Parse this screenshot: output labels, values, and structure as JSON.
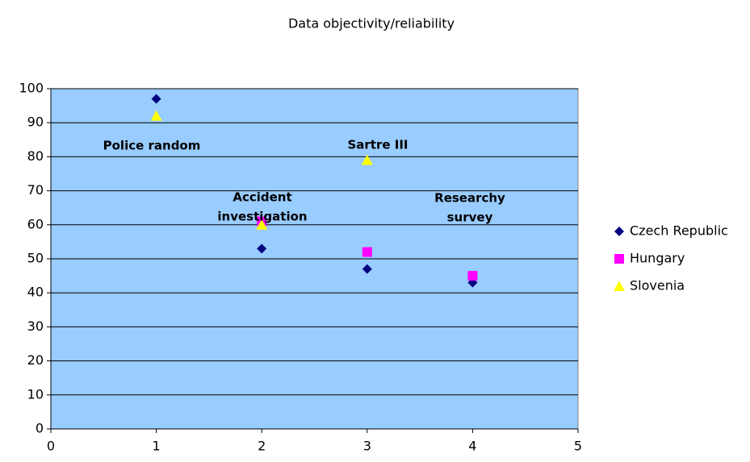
{
  "chart_data": {
    "type": "scatter",
    "title": "Data objectivity/reliability",
    "x": [
      1,
      2,
      3,
      4
    ],
    "series": [
      {
        "name": "Czech Republic",
        "color": "#000080",
        "marker": "diamond",
        "values": [
          97,
          53,
          47,
          43
        ]
      },
      {
        "name": "Hungary",
        "color": "#ff00ff",
        "marker": "square",
        "values": [
          null,
          61,
          52,
          45
        ]
      },
      {
        "name": "Slovenia",
        "color": "#ffff00",
        "marker": "triangle",
        "values": [
          92,
          60,
          79,
          null
        ]
      }
    ],
    "annotations": [
      [
        "Police random"
      ],
      [
        "Accident",
        "investigation"
      ],
      [
        "Sartre III"
      ],
      [
        "Researchy",
        "survey"
      ]
    ],
    "xlim": [
      0,
      5
    ],
    "xticks": [
      0,
      1,
      2,
      3,
      4,
      5
    ],
    "ylim": [
      0,
      100
    ],
    "yticks": [
      0,
      10,
      20,
      30,
      40,
      50,
      60,
      70,
      80,
      90,
      100
    ],
    "grid": true,
    "legend": "right",
    "plot_background": "#99ccff"
  }
}
